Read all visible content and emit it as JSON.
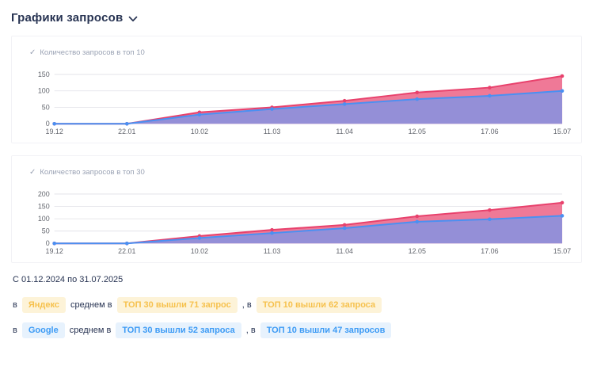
{
  "page": {
    "title": "Графики запросов"
  },
  "icons": {
    "check": "✓"
  },
  "charts": [
    {
      "legend": "Количество запросов в топ 10",
      "chart_data": {
        "type": "area",
        "title": "Количество запросов в топ 10",
        "x": [
          "19.12",
          "22.01",
          "10.02",
          "11.03",
          "11.04",
          "12.05",
          "17.06",
          "15.07"
        ],
        "series": [
          {
            "name": "Яндекс",
            "color": "#e8416c",
            "fill": "#ee6e8e",
            "values": [
              0,
              0,
              35,
              50,
              70,
              95,
              110,
              145
            ]
          },
          {
            "name": "Google",
            "color": "#4a90f2",
            "fill": "#8c91dc",
            "values": [
              0,
              0,
              28,
              45,
              60,
              75,
              85,
              100
            ]
          }
        ],
        "ylim": [
          0,
          150
        ],
        "yticks": [
          0,
          50,
          100,
          150
        ],
        "grid": true,
        "legend_position": "top-left"
      }
    },
    {
      "legend": "Количество запросов в топ 30",
      "chart_data": {
        "type": "area",
        "title": "Количество запросов в топ 30",
        "x": [
          "19.12",
          "22.01",
          "10.02",
          "11.03",
          "11.04",
          "12.05",
          "17.06",
          "15.07"
        ],
        "series": [
          {
            "name": "Яндекс",
            "color": "#e8416c",
            "fill": "#ee6e8e",
            "values": [
              0,
              0,
              30,
              55,
              75,
              110,
              135,
              165
            ]
          },
          {
            "name": "Google",
            "color": "#4a90f2",
            "fill": "#8c91dc",
            "values": [
              0,
              0,
              22,
              42,
              62,
              88,
              98,
              112
            ]
          }
        ],
        "ylim": [
          0,
          200
        ],
        "yticks": [
          0,
          50,
          100,
          150,
          200
        ],
        "grid": true,
        "legend_position": "top-left"
      }
    }
  ],
  "summary": {
    "date_range": "С 01.12.2024 по 31.07.2025",
    "rows": [
      {
        "prefix": "в",
        "engine": "Яндекс",
        "middle": "среднем в",
        "top30": "ТОП 30 вышли 71 запрос",
        "separator": ", в",
        "top10": "ТОП 10 вышли 62 запроса"
      },
      {
        "prefix": "в",
        "engine": "Google",
        "middle": "среднем в",
        "top30": "ТОП 30 вышли 52 запроса",
        "separator": ", в",
        "top10": "ТОП 10 вышли 47 запросов"
      }
    ]
  }
}
